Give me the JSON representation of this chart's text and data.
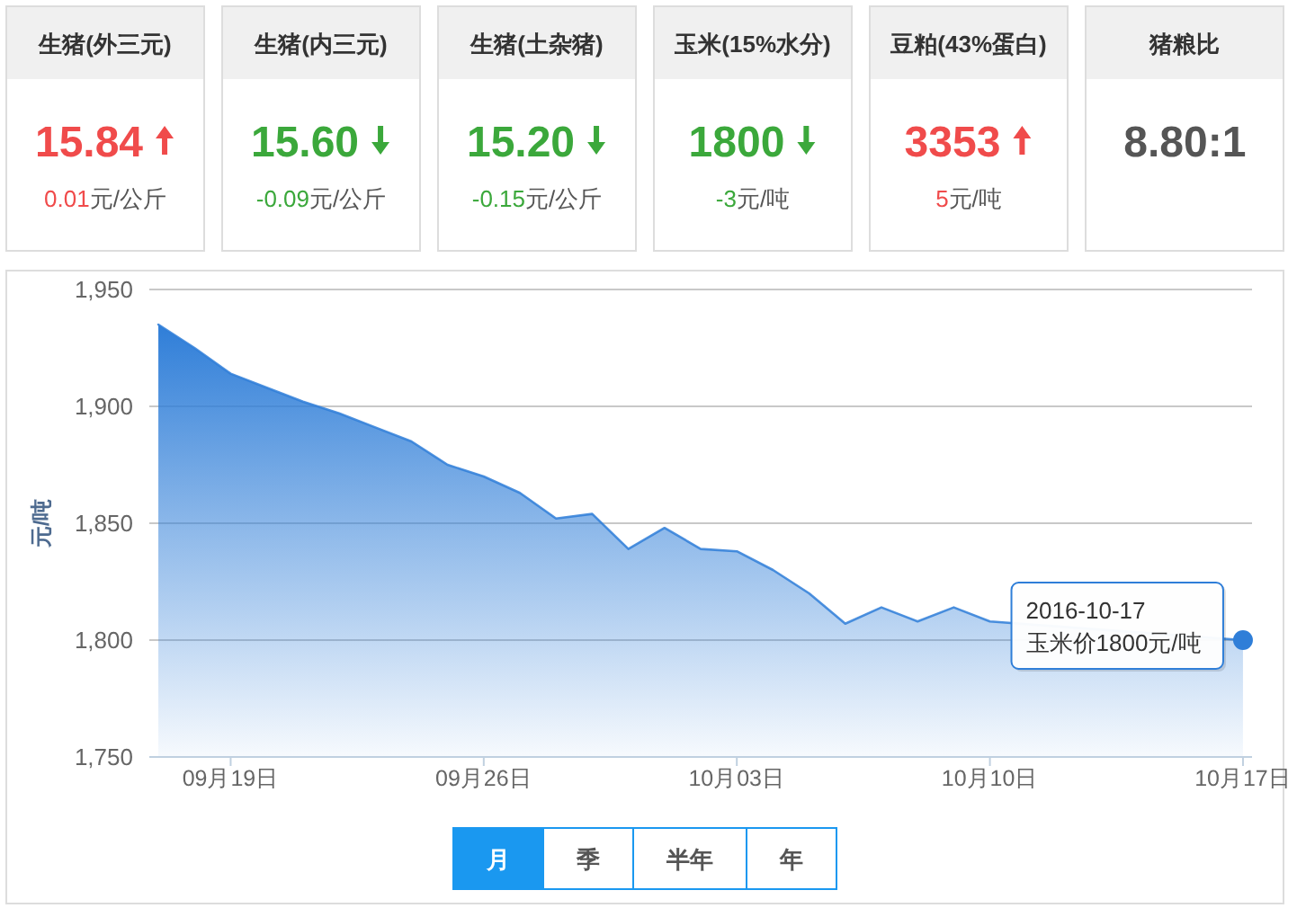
{
  "chart_data": [
    {
      "type": "other",
      "title": "生猪(外三元)",
      "annotations": [
        "15.84",
        "元/公斤"
      ],
      "values": [
        0.01
      ],
      "data_labels": true
    },
    {
      "type": "other",
      "title": "生猪(内三元)",
      "annotations": [
        "15.60",
        "元/公斤"
      ],
      "values": [
        -0.09
      ],
      "data_labels": true
    },
    {
      "type": "other",
      "title": "生猪(土杂猪)",
      "annotations": [
        "15.20",
        "元/公斤"
      ],
      "values": [
        -0.15
      ],
      "data_labels": true
    },
    {
      "type": "other",
      "title": "玉米(15%水分)",
      "annotations": [
        "1800",
        "元/吨"
      ],
      "values": [
        -3
      ],
      "data_labels": true
    },
    {
      "type": "other",
      "title": "豆粕(43%蛋白)",
      "annotations": [
        "3353",
        "元/吨"
      ],
      "values": [
        5
      ],
      "data_labels": true
    },
    {
      "type": "other",
      "title": "猪粮比",
      "annotations": [
        "8.80:1"
      ]
    },
    {
      "type": "area",
      "ylabel": "元/吨",
      "x": [
        "2016-09-17",
        "2016-09-18",
        "2016-09-19",
        "2016-09-20",
        "2016-09-21",
        "2016-09-22",
        "2016-09-23",
        "2016-09-24",
        "2016-09-25",
        "2016-09-26",
        "2016-09-27",
        "2016-09-28",
        "2016-09-29",
        "2016-09-30",
        "2016-10-01",
        "2016-10-02",
        "2016-10-03",
        "2016-10-04",
        "2016-10-05",
        "2016-10-06",
        "2016-10-07",
        "2016-10-08",
        "2016-10-09",
        "2016-10-10",
        "2016-10-17"
      ],
      "series": [
        {
          "color": "#2f7ed8",
          "values": [
            1935,
            1925,
            1914,
            1908,
            1902,
            1897,
            1891,
            1885,
            1875,
            1870,
            1863,
            1852,
            1854,
            1839,
            1848,
            1839,
            1838,
            1830,
            1820,
            1807,
            1814,
            1808,
            1814,
            1808,
            1800
          ]
        }
      ],
      "xlim": [
        "2016-09-16T18:00",
        "2016-10-17T06:00"
      ],
      "xticks": [
        {
          "value": "2016-09-19",
          "label": "09月19日"
        },
        {
          "value": "2016-09-26",
          "label": "09月26日"
        },
        {
          "value": "2016-10-03",
          "label": "10月03日"
        },
        {
          "value": "2016-10-10",
          "label": "10月10日"
        },
        {
          "value": "2016-10-17",
          "label": "10月17日"
        }
      ],
      "ylim": [
        1750,
        1950
      ],
      "yticks": [
        {
          "value": 1750,
          "label": "1,750"
        },
        {
          "value": 1800,
          "label": "1,800"
        },
        {
          "value": 1850,
          "label": "1,850"
        },
        {
          "value": 1900,
          "label": "1,900"
        },
        {
          "value": 1950,
          "label": "1,950"
        }
      ],
      "grid": "y",
      "annotations": [
        {
          "text": "2016-10-17\n玉米价1800元/吨",
          "x": "2016-10-17",
          "y": 1800
        }
      ]
    },
    {
      "type": "other",
      "categories": [
        "月",
        "季",
        "半年",
        "年"
      ],
      "colors": [
        "#1a98f0",
        "#ffffff",
        "#ffffff",
        "#ffffff"
      ]
    }
  ]
}
